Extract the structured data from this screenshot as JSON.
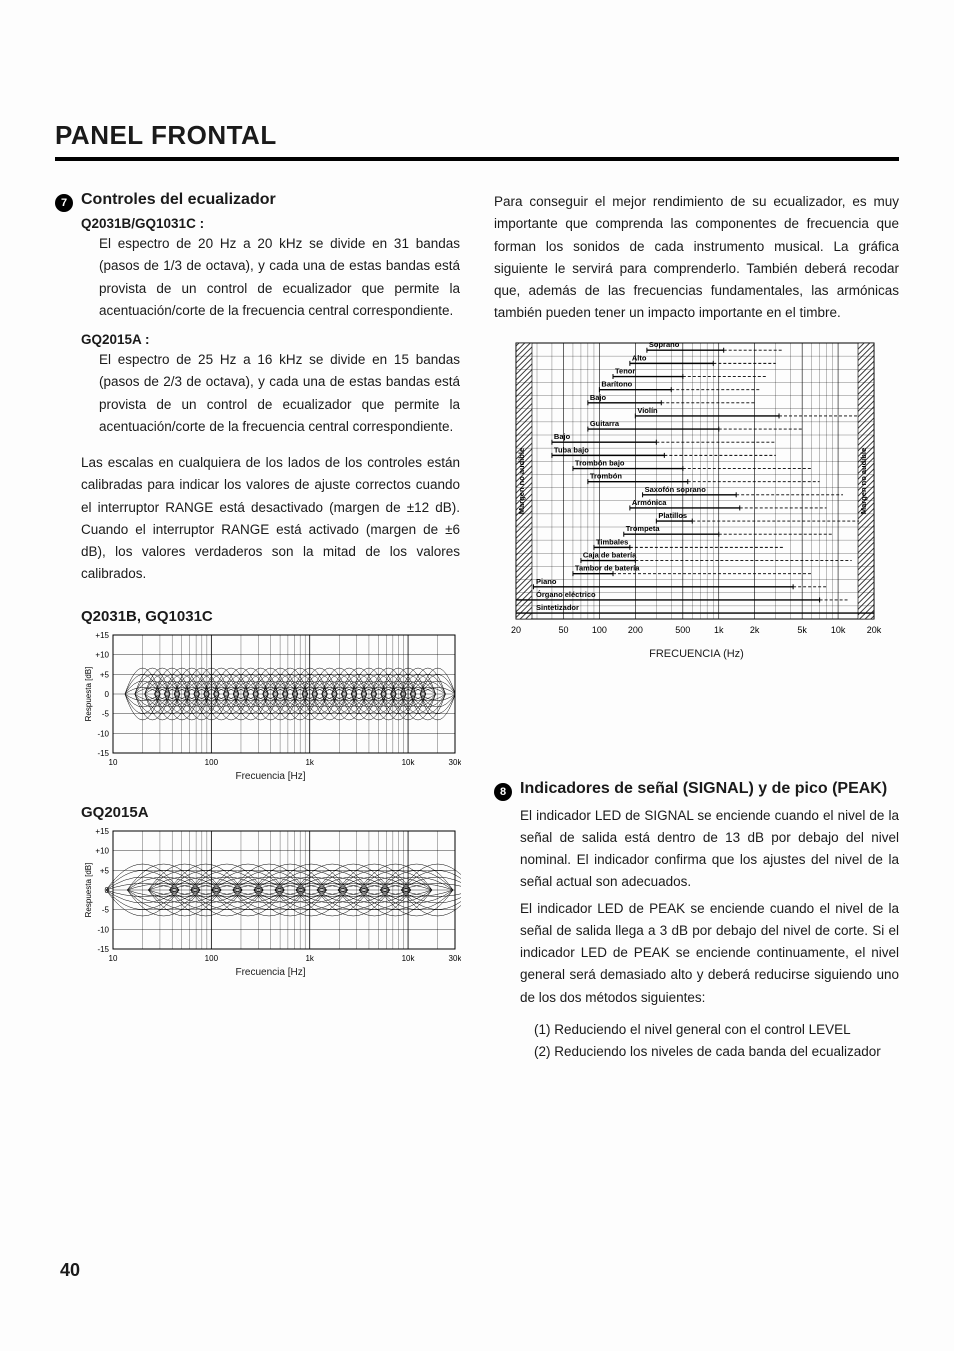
{
  "page": {
    "title": "PANEL FRONTAL",
    "number": "40"
  },
  "section7": {
    "bullet_label": "7",
    "heading": "Controles del ecualizador",
    "modelA": {
      "name": "Q2031B/GQ1031C :",
      "text": "El espectro de 20 Hz a 20 kHz se divide en 31 bandas (pasos de 1/3 de octava), y cada una de estas bandas está provista de un control de ecualizador que permite la acentuación/corte de la frecuencia central correspondiente."
    },
    "modelB": {
      "name": "GQ2015A :",
      "text": "El espectro de 25 Hz a 16 kHz se divide en 15 bandas (pasos de 2/3 de octava), y cada una de estas bandas está provista de un control de ecualizador que permite la acentuación/corte de la frecuencia central correspondiente."
    },
    "scales_text": "Las escalas en cualquiera de los lados de los controles están calibradas para indicar los valores de ajuste correctos cuando el interruptor RANGE está desactivado (margen de ±12 dB). Cuando el interruptor RANGE está activado (margen de ±6 dB), los valores verdaderos son la mitad de los valores calibrados."
  },
  "response_charts": {
    "y_label": "Respuesta [dB]",
    "x_label": "Frecuencia [Hz]",
    "y_ticks": [
      "+15",
      "+10",
      "+5",
      "0",
      "-5",
      "-10",
      "-15"
    ],
    "x_ticks": [
      "10",
      "100",
      "1k",
      "10k",
      "30k"
    ],
    "chartA": {
      "title": "Q2031B, GQ1031C",
      "bands": 31
    },
    "chartB": {
      "title": "GQ2015A",
      "bands": 15
    },
    "line_color": "#000000",
    "grid_color": "#000000",
    "background_color": "#ffffff"
  },
  "right_intro": "Para conseguir el mejor rendimiento de su ecualizador, es muy importante que comprenda las componentes de frecuencia que forman los sonidos de cada instrumento musical. La gráfica siguiente le servirá para comprenderlo. También deberá recodar que, además de las frecuencias fundamentales, las armónicas también pueden tener un impacto importante en el timbre.",
  "instrument_chart": {
    "x_label": "FRECUENCIA (Hz)",
    "x_ticks": [
      "20",
      "50",
      "100",
      "200",
      "500",
      "1k",
      "2k",
      "5k",
      "10k",
      "20k"
    ],
    "side_label": "Margen no audible",
    "hatch_color": "#3a3a3a",
    "grid_color": "#000000",
    "solid_color": "#000000",
    "dashed_color": "#000000",
    "instruments": [
      {
        "name": "Soprano",
        "f_lo": 250,
        "f_hi": 1100,
        "h_hi": 3500
      },
      {
        "name": "Alto",
        "f_lo": 180,
        "f_hi": 900,
        "h_hi": 3000
      },
      {
        "name": "Tenor",
        "f_lo": 130,
        "f_hi": 500,
        "h_hi": 2500
      },
      {
        "name": "Barítono",
        "f_lo": 100,
        "f_hi": 400,
        "h_hi": 2200
      },
      {
        "name": "Bajo",
        "f_lo": 80,
        "f_hi": 330,
        "h_hi": 2000
      },
      {
        "name": "Violín",
        "f_lo": 200,
        "f_hi": 3200,
        "h_hi": 15000
      },
      {
        "name": "Guitarra",
        "f_lo": 80,
        "f_hi": 1000,
        "h_hi": 5000
      },
      {
        "name": "Bajo",
        "f_lo": 40,
        "f_hi": 300,
        "h_hi": 3000
      },
      {
        "name": "Tuba bajo",
        "f_lo": 40,
        "f_hi": 350,
        "h_hi": 3000
      },
      {
        "name": "Trombón bajo",
        "f_lo": 60,
        "f_hi": 500,
        "h_hi": 6000
      },
      {
        "name": "Trombón",
        "f_lo": 80,
        "f_hi": 550,
        "h_hi": 7000
      },
      {
        "name": "Saxofón soprano",
        "f_lo": 230,
        "f_hi": 1400,
        "h_hi": 11000
      },
      {
        "name": "Armónica",
        "f_lo": 180,
        "f_hi": 1500,
        "h_hi": 8000
      },
      {
        "name": "Platillos",
        "f_lo": 300,
        "f_hi": 600,
        "h_hi": 15000
      },
      {
        "name": "Trompeta",
        "f_lo": 160,
        "f_hi": 1000,
        "h_hi": 9000
      },
      {
        "name": "Timbales",
        "f_lo": 90,
        "f_hi": 180,
        "h_hi": 3500
      },
      {
        "name": "Caja de batería",
        "f_lo": 70,
        "f_hi": 200,
        "h_hi": 13000
      },
      {
        "name": "Tambor de batería",
        "f_lo": 60,
        "f_hi": 130,
        "h_hi": 6000
      },
      {
        "name": "Piano",
        "f_lo": 28,
        "f_hi": 4200,
        "h_hi": 8000
      },
      {
        "name": "Órgano eléctrico",
        "f_lo": 20,
        "f_hi": 7000,
        "h_hi": 12000
      },
      {
        "name": "Sintetizador",
        "f_lo": 20,
        "f_hi": 20000,
        "h_hi": 20000
      }
    ]
  },
  "section8": {
    "bullet_label": "8",
    "heading": "Indicadores de señal (SIGNAL) y de pico (PEAK)",
    "p1": "El indicador LED de SIGNAL se enciende cuando el nivel de la señal de salida está dentro de 13 dB por debajo del nivel nominal. El indicador confirma que los ajustes del nivel de la señal actual son adecuados.",
    "p2": "El indicador LED de PEAK se enciende cuando el nivel de la señal de salida llega a 3 dB por debajo del nivel de corte. Si el indicador LED de PEAK se enciende continuamente, el nivel general será demasiado alto y deberá reducirse siguiendo uno de los dos métodos siguientes:",
    "m1": "(1) Reduciendo el nivel general con el control LEVEL",
    "m2": "(2) Reduciendo los niveles de cada banda del ecualizador"
  }
}
